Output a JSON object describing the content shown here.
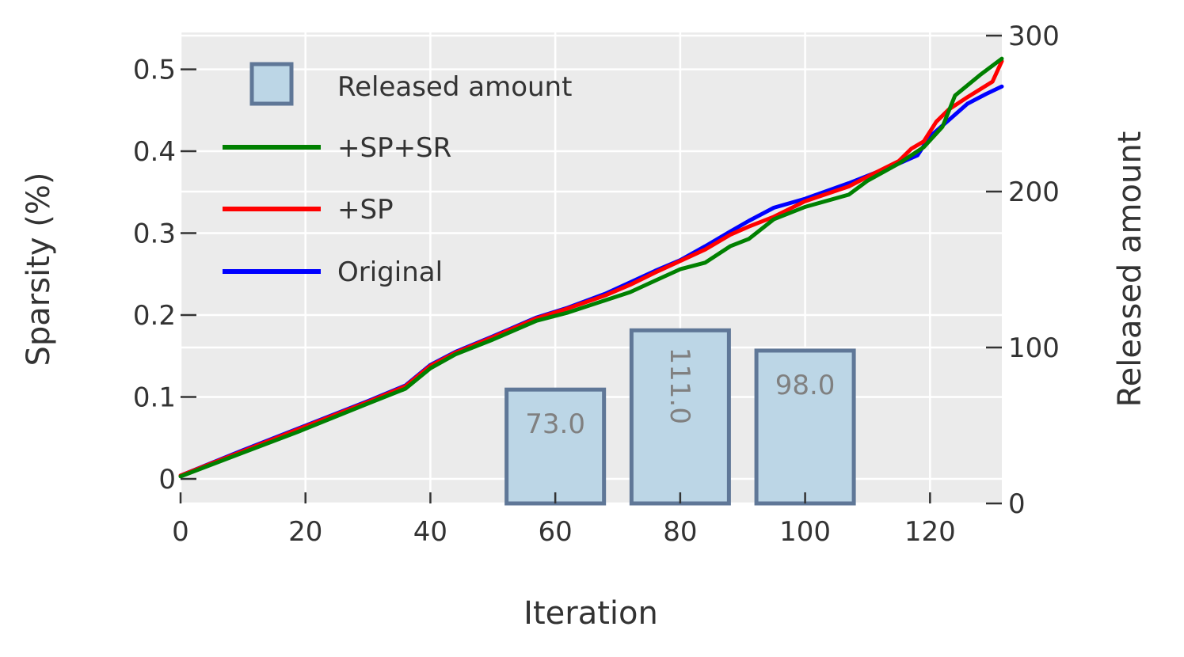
{
  "chart_data": {
    "type": "bar+line",
    "xlabel": "Iteration",
    "ylabel_left": "Sparsity (%)",
    "ylabel_right": "Released amount",
    "xlim": [
      0,
      131.5
    ],
    "ylim_left": [
      -0.03,
      0.545
    ],
    "ylim_right": [
      0,
      302
    ],
    "x_ticks": [
      "0",
      "20",
      "40",
      "60",
      "80",
      "100",
      "120"
    ],
    "y_left_ticks": [
      "0",
      "0.1",
      "0.2",
      "0.3",
      "0.4",
      "0.5"
    ],
    "y_right_ticks": [
      "0",
      "100",
      "200",
      "300"
    ],
    "grid": true,
    "legend_position": "top-left",
    "bars": {
      "name": "Released amount",
      "color": "#bcd6e6",
      "edge_color": "#5f7797",
      "centers": [
        0,
        20,
        40,
        60,
        80,
        100,
        120
      ],
      "values": [
        0,
        0,
        0,
        73,
        111,
        98,
        0
      ],
      "labels": [
        "",
        "",
        "",
        "73.0",
        "111.0",
        "98.0",
        ""
      ],
      "label_rotated": [
        false,
        false,
        false,
        false,
        true,
        false,
        false
      ]
    },
    "series": [
      {
        "name": "+SP+SR",
        "color": "#008000",
        "x": [
          0,
          10,
          19,
          30,
          36,
          40,
          44,
          50,
          57,
          62,
          68,
          72,
          76,
          80,
          84,
          88,
          91,
          95,
          100,
          107,
          110,
          115,
          119,
          122,
          124,
          128,
          131.5
        ],
        "y": [
          0.003,
          0.032,
          0.058,
          0.092,
          0.11,
          0.135,
          0.152,
          0.17,
          0.193,
          0.203,
          0.218,
          0.228,
          0.242,
          0.256,
          0.264,
          0.284,
          0.293,
          0.317,
          0.332,
          0.347,
          0.364,
          0.385,
          0.405,
          0.43,
          0.468,
          0.493,
          0.513
        ]
      },
      {
        "name": "+SP",
        "color": "#ff0000",
        "x": [
          0,
          10,
          19,
          30,
          36,
          40,
          44,
          50,
          57,
          62,
          68,
          72,
          76,
          80,
          84,
          88,
          91,
          95,
          100,
          107,
          110,
          115,
          117,
          119,
          121,
          123,
          126,
          130,
          131.5
        ],
        "y": [
          0.004,
          0.034,
          0.061,
          0.094,
          0.113,
          0.138,
          0.154,
          0.173,
          0.196,
          0.208,
          0.224,
          0.237,
          0.252,
          0.266,
          0.28,
          0.298,
          0.308,
          0.32,
          0.339,
          0.357,
          0.369,
          0.388,
          0.403,
          0.412,
          0.436,
          0.451,
          0.466,
          0.485,
          0.51
        ]
      },
      {
        "name": "Original",
        "color": "#0000ff",
        "x": [
          0,
          10,
          19,
          30,
          36,
          40,
          44,
          50,
          57,
          62,
          68,
          72,
          76,
          80,
          84,
          88,
          91,
          95,
          100,
          107,
          110,
          115,
          118,
          120,
          123,
          126,
          129,
          131.5
        ],
        "y": [
          0.004,
          0.035,
          0.062,
          0.095,
          0.114,
          0.139,
          0.155,
          0.174,
          0.197,
          0.209,
          0.226,
          0.24,
          0.254,
          0.267,
          0.284,
          0.302,
          0.315,
          0.331,
          0.342,
          0.361,
          0.37,
          0.385,
          0.395,
          0.418,
          0.438,
          0.458,
          0.47,
          0.479
        ]
      }
    ]
  }
}
